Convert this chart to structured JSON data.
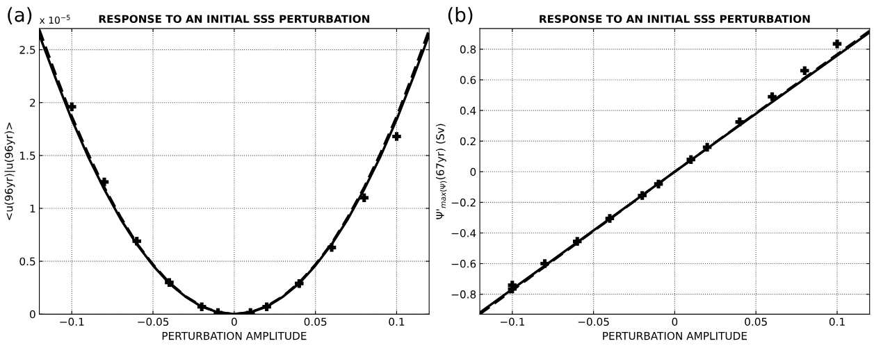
{
  "chart_data": [
    {
      "type": "line",
      "title": "RESPONSE TO AN INITIAL SSS PERTURBATION",
      "xlabel": "PERTURBATION AMPLITUDE",
      "ylabel": "<u(96yr)|u(96yr)>",
      "annotations": [
        "(a)",
        "x 10$^{−5}$"
      ],
      "xlim": [
        -0.12,
        0.12
      ],
      "ylim": [
        0,
        2.7
      ],
      "xticks": [
        -0.1,
        -0.05,
        0,
        0.05,
        0.1
      ],
      "yticks": [
        0,
        0.5,
        1,
        1.5,
        2,
        2.5
      ],
      "grid": true,
      "series": [
        {
          "type": "line",
          "color": "#000000",
          "line_style": "solid",
          "x": [
            -0.12,
            -0.11,
            -0.1,
            -0.09,
            -0.08,
            -0.07,
            -0.06,
            -0.05,
            -0.04,
            -0.03,
            -0.02,
            -0.01,
            0,
            0.01,
            0.02,
            0.03,
            0.04,
            0.05,
            0.06,
            0.07,
            0.08,
            0.09,
            0.1,
            0.11,
            0.12
          ],
          "values": [
            2.64,
            2.23,
            1.84,
            1.49,
            1.18,
            0.9,
            0.66,
            0.46,
            0.29,
            0.165,
            0.07,
            0.018,
            0,
            0.018,
            0.07,
            0.165,
            0.29,
            0.46,
            0.66,
            0.9,
            1.18,
            1.49,
            1.84,
            2.23,
            2.64
          ]
        },
        {
          "type": "line",
          "color": "#000000",
          "line_style": "dashed",
          "x": [
            -0.12,
            -0.11,
            -0.1,
            -0.09,
            -0.08,
            -0.07,
            -0.06,
            -0.05,
            -0.04,
            -0.03,
            -0.02,
            -0.01,
            0,
            0.01,
            0.02,
            0.03,
            0.04,
            0.05,
            0.06,
            0.07,
            0.08,
            0.09,
            0.1,
            0.11,
            0.12
          ],
          "values": [
            2.69,
            2.27,
            1.87,
            1.52,
            1.2,
            0.92,
            0.67,
            0.47,
            0.3,
            0.17,
            0.075,
            0.019,
            0,
            0.019,
            0.075,
            0.17,
            0.3,
            0.47,
            0.67,
            0.92,
            1.2,
            1.52,
            1.87,
            2.27,
            2.69
          ]
        },
        {
          "type": "scatter",
          "color": "#000000",
          "marker": "cross",
          "x": [
            -0.1,
            -0.08,
            -0.06,
            -0.04,
            -0.02,
            -0.01,
            0.01,
            0.02,
            0.04,
            0.06,
            0.08,
            0.1
          ],
          "values": [
            1.96,
            1.25,
            0.69,
            0.3,
            0.07,
            0.015,
            0.015,
            0.07,
            0.29,
            0.63,
            1.1,
            1.68
          ]
        }
      ]
    },
    {
      "type": "line",
      "title": "RESPONSE TO AN INITIAL SSS PERTURBATION",
      "xlabel": "PERTURBATION AMPLITUDE",
      "ylabel": "Ψ'$_{max(Ψ)}$(67yr) (Sv)",
      "annotations": [
        "(b)"
      ],
      "xlim": [
        -0.12,
        0.12
      ],
      "ylim": [
        -0.93,
        0.935
      ],
      "xticks": [
        -0.1,
        -0.05,
        0,
        0.05,
        0.1
      ],
      "yticks": [
        -0.8,
        -0.6,
        -0.4,
        -0.2,
        0,
        0.2,
        0.4,
        0.6,
        0.8
      ],
      "grid": true,
      "series": [
        {
          "type": "line",
          "color": "#000000",
          "line_style": "solid",
          "x": [
            -0.12,
            0,
            0.12
          ],
          "values": [
            -0.92,
            0,
            0.91
          ]
        },
        {
          "type": "line",
          "color": "#000000",
          "line_style": "dashed",
          "x": [
            -0.12,
            0,
            0.12
          ],
          "values": [
            -0.93,
            0,
            0.92
          ]
        },
        {
          "type": "scatter",
          "color": "#000000",
          "marker": "cross",
          "x": [
            -0.1,
            -0.1,
            -0.08,
            -0.06,
            -0.04,
            -0.02,
            -0.01,
            0.01,
            0.02,
            0.04,
            0.06,
            0.08,
            0.1
          ],
          "values": [
            -0.74,
            -0.765,
            -0.6,
            -0.455,
            -0.305,
            -0.155,
            -0.08,
            0.08,
            0.16,
            0.325,
            0.49,
            0.66,
            0.835
          ]
        }
      ]
    }
  ]
}
